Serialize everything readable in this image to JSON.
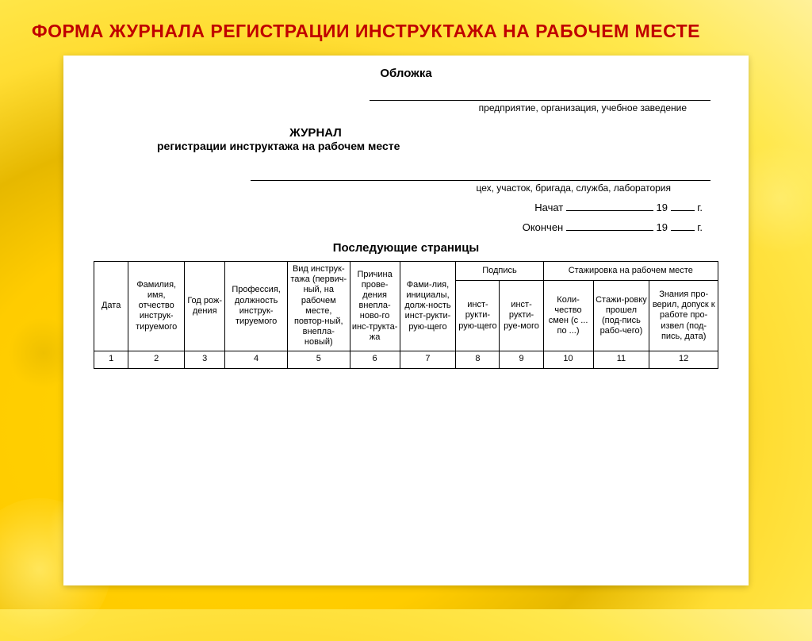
{
  "slide_title": "ФОРМА ЖУРНАЛА РЕГИСТРАЦИИ ИНСТРУКТАЖА НА РАБОЧЕМ МЕСТЕ",
  "cover": {
    "label": "Обложка",
    "field1_caption": "предприятие, организация, учебное заведение",
    "journal_word": "ЖУРНАЛ",
    "journal_sub": "регистрации инструктажа на рабочем месте",
    "field2_caption": "цех, участок, бригада, служба, лаборатория",
    "started_label": "Начат",
    "ended_label": "Окончен",
    "year_prefix": "19",
    "year_suffix": "г."
  },
  "subseq_label": "Последующие страницы",
  "table": {
    "group_signature": "Подпись",
    "group_internship": "Стажировка на рабочем месте",
    "headers": {
      "c1": "Дата",
      "c2": "Фамилия, имя, отчество инструк-тируемого",
      "c3": "Год рож-дения",
      "c4": "Профессия, должность инструк-тируемого",
      "c5": "Вид инструк-тажа (первич-ный, на рабочем месте, повтор-ный, внепла-новый)",
      "c6": "Причина прове-дения внепла-ново-го инс-трукта-жа",
      "c7": "Фами-лия, инициалы, долж-ность инст-рукти-рую-щего",
      "c8": "инст-рукти-рую-щего",
      "c9": "инст-рукти-руе-мого",
      "c10": "Коли-чество смен (с ... по ...)",
      "c11": "Стажи-ровку прошел (под-пись рабо-чего)",
      "c12": "Знания про-верил, допуск к работе про-извел (под-пись, дата)"
    },
    "numbers": [
      "1",
      "2",
      "3",
      "4",
      "5",
      "6",
      "7",
      "8",
      "9",
      "10",
      "11",
      "12"
    ]
  },
  "colors": {
    "title": "#c00000",
    "doc_bg": "#ffffff",
    "text": "#000000"
  }
}
